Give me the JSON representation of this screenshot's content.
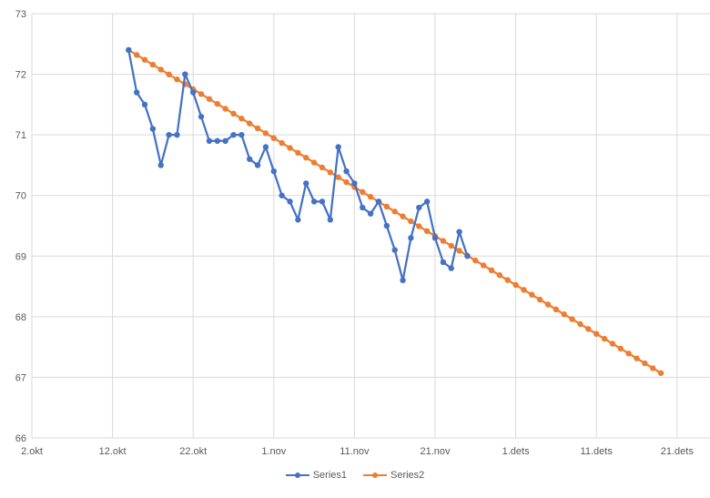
{
  "chart_data": {
    "type": "line",
    "title": "",
    "xlabel": "",
    "ylabel": "",
    "x_tick_labels": [
      "2.okt",
      "12.okt",
      "22.okt",
      "1.nov",
      "11.nov",
      "21.nov",
      "1.dets",
      "11.dets",
      "21.dets"
    ],
    "x_tick_days": [
      0,
      10,
      20,
      30,
      40,
      50,
      60,
      70,
      80
    ],
    "x_range_days": [
      0,
      85
    ],
    "y_tick_labels": [
      "66",
      "67",
      "68",
      "69",
      "70",
      "71",
      "72",
      "73"
    ],
    "ylim": [
      66,
      73
    ],
    "grid": true,
    "legend_position": "bottom",
    "series": [
      {
        "name": "Series1",
        "color": "#4472c4",
        "x_days": [
          12,
          13,
          14,
          15,
          16,
          17,
          18,
          19,
          20,
          21,
          22,
          23,
          24,
          25,
          26,
          27,
          28,
          29,
          30,
          31,
          32,
          33,
          34,
          35,
          36,
          37,
          38,
          39,
          40,
          41,
          42,
          43,
          44,
          45,
          46,
          47,
          48,
          49,
          50,
          51,
          52,
          53,
          54
        ],
        "values": [
          72.4,
          71.7,
          71.5,
          71.1,
          70.5,
          71.0,
          71.0,
          72.0,
          71.7,
          71.3,
          70.9,
          70.9,
          70.9,
          71.0,
          71.0,
          70.6,
          70.5,
          70.8,
          70.4,
          70.0,
          69.9,
          69.6,
          70.2,
          69.9,
          69.9,
          69.6,
          70.8,
          70.4,
          70.2,
          69.8,
          69.7,
          69.9,
          69.5,
          69.1,
          68.6,
          69.3,
          69.8,
          69.9,
          69.3,
          68.9,
          68.8,
          69.4,
          69.0
        ]
      },
      {
        "name": "Series2",
        "color": "#ed7d31",
        "x_start_day": 12,
        "x_end_day": 78,
        "start_value": 72.4,
        "end_value": 67.07
      }
    ]
  }
}
